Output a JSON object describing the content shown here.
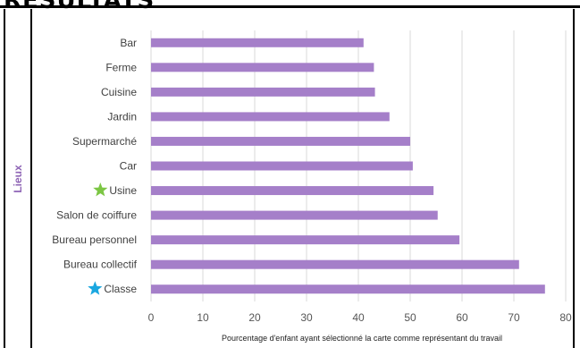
{
  "slide": {
    "title": "RÉSULTATS"
  },
  "chart_data": {
    "type": "bar",
    "orientation": "horizontal",
    "categories": [
      "Bar",
      "Ferme",
      "Cuisine",
      "Jardin",
      "Supermarché",
      "Car",
      "Usine",
      "Salon de coiffure",
      "Bureau personnel",
      "Bureau collectif",
      "Classe"
    ],
    "values": [
      41,
      43,
      43.2,
      46,
      50,
      50.5,
      54.5,
      55.3,
      59.5,
      71,
      76
    ],
    "markers": [
      {
        "category": "Usine",
        "icon": "star-icon",
        "color": "#7cc644"
      },
      {
        "category": "Classe",
        "icon": "star-icon",
        "color": "#1aa7e0"
      }
    ],
    "xlabel": "Pourcentage d'enfant ayant sélectionné la carte comme représentant du travail",
    "ylabel": "Lieux",
    "xlim": [
      0,
      80
    ],
    "xticks": [
      0,
      10,
      20,
      30,
      40,
      50,
      60,
      70,
      80
    ],
    "grid": true,
    "bar_color": "#a57fc9"
  }
}
